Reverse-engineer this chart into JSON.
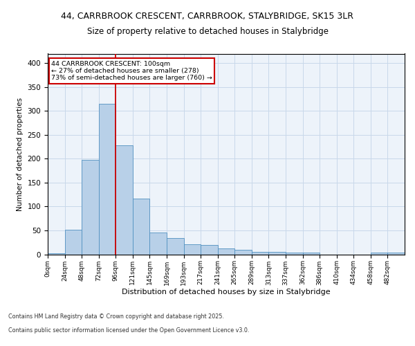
{
  "title_line1": "44, CARRBROOK CRESCENT, CARRBROOK, STALYBRIDGE, SK15 3LR",
  "title_line2": "Size of property relative to detached houses in Stalybridge",
  "xlabel": "Distribution of detached houses by size in Stalybridge",
  "ylabel": "Number of detached properties",
  "bar_values": [
    2,
    51,
    197,
    315,
    228,
    117,
    46,
    34,
    21,
    20,
    13,
    9,
    5,
    5,
    3,
    3,
    0,
    0,
    0,
    3,
    3
  ],
  "bin_labels": [
    "0sqm",
    "24sqm",
    "48sqm",
    "72sqm",
    "96sqm",
    "121sqm",
    "145sqm",
    "169sqm",
    "193sqm",
    "217sqm",
    "241sqm",
    "265sqm",
    "289sqm",
    "313sqm",
    "337sqm",
    "362sqm",
    "386sqm",
    "410sqm",
    "434sqm",
    "458sqm",
    "482sqm"
  ],
  "bar_color": "#b8d0e8",
  "bar_edge_color": "#5090c0",
  "grid_color": "#c8d8ea",
  "bg_color": "#edf3fa",
  "vline_x": 3,
  "vline_color": "#cc0000",
  "annotation_text": "44 CARRBROOK CRESCENT: 100sqm\n← 27% of detached houses are smaller (278)\n73% of semi-detached houses are larger (760) →",
  "annotation_box_color": "#cc0000",
  "ylim": [
    0,
    420
  ],
  "yticks": [
    0,
    50,
    100,
    150,
    200,
    250,
    300,
    350,
    400
  ],
  "footer_line1": "Contains HM Land Registry data © Crown copyright and database right 2025.",
  "footer_line2": "Contains public sector information licensed under the Open Government Licence v3.0."
}
